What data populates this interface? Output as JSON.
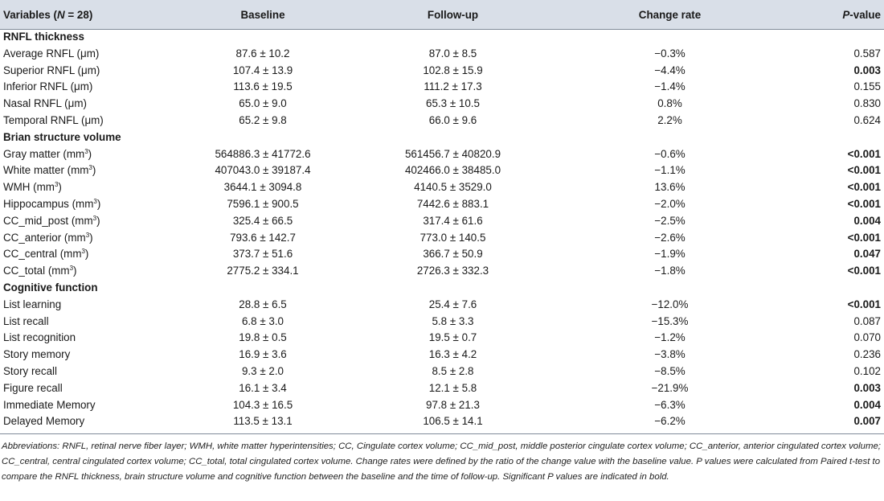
{
  "header": {
    "variables_prefix": "Variables (",
    "variables_n": "N",
    "variables_suffix": " = 28)",
    "baseline": "Baseline",
    "followup": "Follow-up",
    "change_rate": "Change rate",
    "p_letter": "P",
    "p_suffix": "-value"
  },
  "sections": [
    {
      "title": "RNFL thickness",
      "rows": [
        {
          "label": "Average RNFL (μm)",
          "baseline": "87.6 ± 10.2",
          "followup": "87.0 ± 8.5",
          "change": "−0.3%",
          "p": "0.587",
          "sig": false
        },
        {
          "label": "Superior RNFL (μm)",
          "baseline": "107.4 ± 13.9",
          "followup": "102.8 ± 15.9",
          "change": "−4.4%",
          "p": "0.003",
          "sig": true
        },
        {
          "label": "Inferior RNFL (μm)",
          "baseline": "113.6 ± 19.5",
          "followup": "111.2 ± 17.3",
          "change": "−1.4%",
          "p": "0.155",
          "sig": false
        },
        {
          "label": "Nasal RNFL (μm)",
          "baseline": "65.0 ± 9.0",
          "followup": "65.3 ± 10.5",
          "change": "0.8%",
          "p": "0.830",
          "sig": false
        },
        {
          "label": "Temporal RNFL (μm)",
          "baseline": "65.2 ± 9.8",
          "followup": "66.0 ± 9.6",
          "change": "2.2%",
          "p": "0.624",
          "sig": false
        }
      ]
    },
    {
      "title": "Brian structure volume",
      "rows": [
        {
          "label": "Gray matter (mm",
          "sup": "3",
          "label_end": ")",
          "baseline": "564886.3 ± 41772.6",
          "followup": "561456.7 ± 40820.9",
          "change": "−0.6%",
          "p": "<0.001",
          "sig": true
        },
        {
          "label": "White matter (mm",
          "sup": "3",
          "label_end": ")",
          "baseline": "407043.0 ± 39187.4",
          "followup": "402466.0 ± 38485.0",
          "change": "−1.1%",
          "p": "<0.001",
          "sig": true
        },
        {
          "label": "WMH (mm",
          "sup": "3",
          "label_end": ")",
          "baseline": "3644.1 ± 3094.8",
          "followup": "4140.5 ± 3529.0",
          "change": "13.6%",
          "p": "<0.001",
          "sig": true
        },
        {
          "label": "Hippocampus (mm",
          "sup": "3",
          "label_end": ")",
          "baseline": "7596.1 ± 900.5",
          "followup": "7442.6 ± 883.1",
          "change": "−2.0%",
          "p": "<0.001",
          "sig": true
        },
        {
          "label": "CC_mid_post (mm",
          "sup": "3",
          "label_end": ")",
          "baseline": "325.4 ± 66.5",
          "followup": "317.4 ± 61.6",
          "change": "−2.5%",
          "p": "0.004",
          "sig": true
        },
        {
          "label": "CC_anterior (mm",
          "sup": "3",
          "label_end": ")",
          "baseline": "793.6 ± 142.7",
          "followup": "773.0 ± 140.5",
          "change": "−2.6%",
          "p": "<0.001",
          "sig": true
        },
        {
          "label": "CC_central (mm",
          "sup": "3",
          "label_end": ")",
          "baseline": "373.7 ± 51.6",
          "followup": "366.7 ± 50.9",
          "change": "−1.9%",
          "p": "0.047",
          "sig": true
        },
        {
          "label": "CC_total (mm",
          "sup": "3",
          "label_end": ")",
          "baseline": "2775.2 ± 334.1",
          "followup": "2726.3 ± 332.3",
          "change": "−1.8%",
          "p": "<0.001",
          "sig": true
        }
      ]
    },
    {
      "title": "Cognitive function",
      "rows": [
        {
          "label": "List learning",
          "baseline": "28.8 ± 6.5",
          "followup": "25.4 ± 7.6",
          "change": "−12.0%",
          "p": "<0.001",
          "sig": true
        },
        {
          "label": "List recall",
          "baseline": "6.8 ± 3.0",
          "followup": "5.8 ± 3.3",
          "change": "−15.3%",
          "p": "0.087",
          "sig": false
        },
        {
          "label": "List recognition",
          "baseline": "19.8 ± 0.5",
          "followup": "19.5 ± 0.7",
          "change": "−1.2%",
          "p": "0.070",
          "sig": false
        },
        {
          "label": "Story memory",
          "baseline": "16.9 ± 3.6",
          "followup": "16.3 ± 4.2",
          "change": "−3.8%",
          "p": "0.236",
          "sig": false
        },
        {
          "label": "Story recall",
          "baseline": "9.3 ± 2.0",
          "followup": "8.5 ± 2.8",
          "change": "−8.5%",
          "p": "0.102",
          "sig": false
        },
        {
          "label": "Figure recall",
          "baseline": "16.1 ± 3.4",
          "followup": "12.1 ± 5.8",
          "change": "−21.9%",
          "p": "0.003",
          "sig": true
        },
        {
          "label": "Immediate Memory",
          "baseline": "104.3 ± 16.5",
          "followup": "97.8 ± 21.3",
          "change": "−6.3%",
          "p": "0.004",
          "sig": true
        },
        {
          "label": "Delayed Memory",
          "baseline": "113.5 ± 13.1",
          "followup": "106.5 ± 14.1",
          "change": "−6.2%",
          "p": "0.007",
          "sig": true
        }
      ]
    }
  ],
  "footnote": "Abbreviations: RNFL, retinal nerve fiber layer; WMH, white matter hyperintensities; CC, Cingulate cortex volume; CC_mid_post, middle posterior cingulate cortex volume; CC_anterior, anterior cingulated cortex volume; CC_central, central cingulated cortex volume; CC_total, total cingulated cortex volume. Change rates were defined by the ratio of the change value with the baseline value. P values were calculated from Paired t-test to compare the RNFL thickness, brain structure volume and cognitive function between the baseline and the time of follow-up. Significant P values are indicated in bold."
}
